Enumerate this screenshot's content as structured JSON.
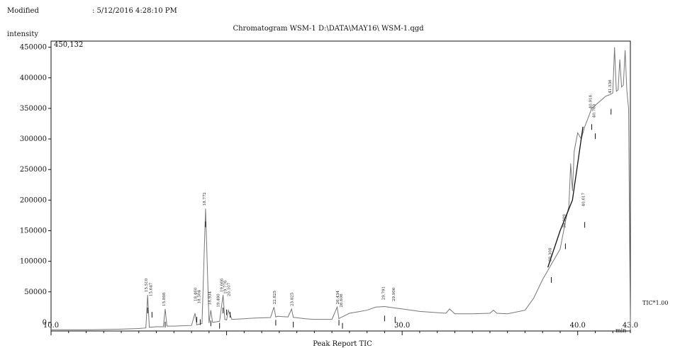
{
  "header": {
    "modified_label": "Modified",
    "modified_value": ": 5/12/2016 4:28:10 PM"
  },
  "chart_data": {
    "type": "line",
    "title": "Chromatogram  WSM-1  D:\\DATA\\MAY16\\ WSM-1.qgd",
    "ylabel": "intensity",
    "xlabel": "",
    "x_unit": "min",
    "max_label": "450,132",
    "tic_label": "TIC*1.00",
    "footer": "Peak Report TIC",
    "xlim": [
      10.0,
      43.0
    ],
    "ylim": [
      -14000,
      460000
    ],
    "yticks": [
      0,
      50000,
      100000,
      150000,
      200000,
      250000,
      300000,
      350000,
      400000,
      450000
    ],
    "ytick_labels": [
      "0",
      "50000",
      "100000",
      "150000",
      "200000",
      "250000",
      "300000",
      "350000",
      "400000",
      "450000"
    ],
    "xticks": [
      10.0,
      30.0,
      40.0,
      43.0
    ],
    "xtick_labels": [
      "10.0",
      "30.0",
      "40.0",
      "43.0"
    ],
    "grid": false,
    "series": [
      {
        "x": [
          10.0,
          12.0,
          14.0,
          15.0,
          15.4,
          15.5,
          15.6,
          16.0,
          16.4,
          16.5,
          16.6,
          17.0,
          18.0,
          18.2,
          18.3,
          18.4,
          18.6,
          18.8,
          19.0,
          19.1,
          19.2,
          19.4,
          19.6,
          19.8,
          19.9,
          20.0,
          20.1,
          20.3,
          21.0,
          21.5,
          22.5,
          22.7,
          22.8,
          22.9,
          23.5,
          23.7,
          23.8,
          23.9,
          24.5,
          25.0,
          26.0,
          26.3,
          26.4,
          26.5,
          27.0,
          28.0,
          28.5,
          29.0,
          29.5,
          30.0,
          31.0,
          32.0,
          32.5,
          32.7,
          33.0,
          34.0,
          35.0,
          35.2,
          35.4,
          36.0,
          37.0,
          37.5,
          38.0,
          38.5,
          39.0,
          39.3,
          39.5,
          39.6,
          39.7,
          39.8,
          40.0,
          40.2,
          40.4,
          40.6,
          40.8,
          41.0,
          41.2,
          41.4,
          41.6,
          41.8,
          42.0,
          42.1,
          42.2,
          42.3,
          42.4,
          42.5,
          42.6,
          42.7,
          42.8,
          42.9,
          43.0
        ],
        "y": [
          -12000,
          -12000,
          -11000,
          -10000,
          -9000,
          45000,
          -8000,
          -7000,
          -7000,
          22000,
          -6000,
          -6000,
          -5000,
          15000,
          -4000,
          -3000,
          -2000,
          186000,
          -1000,
          20000,
          0,
          1000,
          2000,
          45000,
          5000,
          4000,
          20000,
          5000,
          6000,
          7000,
          8000,
          25000,
          9000,
          10000,
          9000,
          22000,
          8000,
          8000,
          6000,
          5000,
          5000,
          25000,
          6000,
          8000,
          15000,
          20000,
          25000,
          26000,
          24000,
          22000,
          18000,
          16000,
          15000,
          22000,
          14000,
          14000,
          15000,
          20000,
          15000,
          14000,
          20000,
          40000,
          70000,
          95000,
          120000,
          165000,
          190000,
          260000,
          215000,
          280000,
          310000,
          300000,
          320000,
          335000,
          350000,
          355000,
          360000,
          365000,
          370000,
          372000,
          375000,
          450000,
          378000,
          380000,
          430000,
          385000,
          388000,
          445000,
          380000,
          350000,
          -12000
        ]
      }
    ],
    "peak_labels": [
      {
        "x": 15.5,
        "y": 45000,
        "text": "15.510"
      },
      {
        "x": 15.75,
        "y": 38000,
        "text": "15.647"
      },
      {
        "x": 16.5,
        "y": 22000,
        "text": "15.898"
      },
      {
        "x": 18.3,
        "y": 30000,
        "text": "18.460"
      },
      {
        "x": 18.5,
        "y": 26000,
        "text": "18.504"
      },
      {
        "x": 18.8,
        "y": 186000,
        "text": "18.772"
      },
      {
        "x": 19.1,
        "y": 24000,
        "text": "18.934"
      },
      {
        "x": 19.6,
        "y": 20000,
        "text": "19.480"
      },
      {
        "x": 19.8,
        "y": 45000,
        "text": "19.666"
      },
      {
        "x": 20.0,
        "y": 42000,
        "text": "19.776"
      },
      {
        "x": 20.2,
        "y": 38000,
        "text": "20.107"
      },
      {
        "x": 22.8,
        "y": 25000,
        "text": "22.825"
      },
      {
        "x": 23.8,
        "y": 22000,
        "text": "23.825"
      },
      {
        "x": 26.4,
        "y": 25000,
        "text": "26.434"
      },
      {
        "x": 26.6,
        "y": 20000,
        "text": "26.606"
      },
      {
        "x": 29.0,
        "y": 32000,
        "text": "29.791"
      },
      {
        "x": 29.6,
        "y": 30000,
        "text": "29.906"
      },
      {
        "x": 38.5,
        "y": 95000,
        "text": "38.308"
      },
      {
        "x": 39.3,
        "y": 150000,
        "text": "38.909"
      },
      {
        "x": 40.4,
        "y": 185000,
        "text": "40.617"
      },
      {
        "x": 40.8,
        "y": 345000,
        "text": "40.918"
      },
      {
        "x": 41.0,
        "y": 330000,
        "text": "40.763"
      },
      {
        "x": 41.9,
        "y": 370000,
        "text": "41.536"
      }
    ]
  }
}
